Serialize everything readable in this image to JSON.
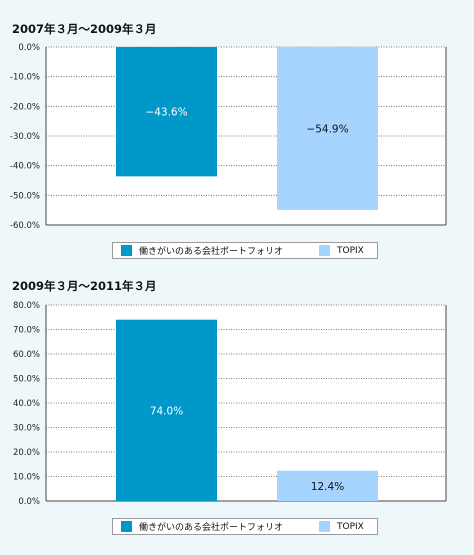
{
  "colors": {
    "background": "#eef8fb",
    "plot_background": "#ffffff",
    "series_portfolio": "#0098c9",
    "series_topix": "#a7d3ff",
    "grid": "#555555"
  },
  "legend": {
    "portfolio_label": "働きがいのある会社ポートフォリオ",
    "topix_label": "TOPIX"
  },
  "chart_data": [
    {
      "type": "bar",
      "title": "2007年３月～2009年３月",
      "categories": [
        "働きがいのある会社ポートフォリオ",
        "TOPIX"
      ],
      "values": [
        -43.6,
        -54.9
      ],
      "value_labels": [
        "−43.6%",
        "−54.9%"
      ],
      "ylim": [
        -60,
        0
      ],
      "yticks": [
        0,
        -10,
        -20,
        -30,
        -40,
        -50,
        -60
      ],
      "ytick_labels": [
        "0.0%",
        "-10.0%",
        "-20.0%",
        "-30.0%",
        "-40.0%",
        "-50.0%",
        "-60.0%"
      ],
      "xlabel": "",
      "ylabel": "",
      "grid": true,
      "grid_style": "dotted horizontal",
      "legend_position": "bottom"
    },
    {
      "type": "bar",
      "title": "2009年３月～2011年３月",
      "categories": [
        "働きがいのある会社ポートフォリオ",
        "TOPIX"
      ],
      "values": [
        74.0,
        12.4
      ],
      "value_labels": [
        "74.0%",
        "12.4%"
      ],
      "ylim": [
        0,
        80
      ],
      "yticks": [
        80,
        70,
        60,
        50,
        40,
        30,
        20,
        10,
        0
      ],
      "ytick_labels": [
        "80.0%",
        "70.0%",
        "60.0%",
        "50.0%",
        "40.0%",
        "30.0%",
        "20.0%",
        "10.0%",
        "0.0%"
      ],
      "xlabel": "",
      "ylabel": "",
      "grid": true,
      "grid_style": "dotted horizontal",
      "legend_position": "bottom"
    }
  ]
}
